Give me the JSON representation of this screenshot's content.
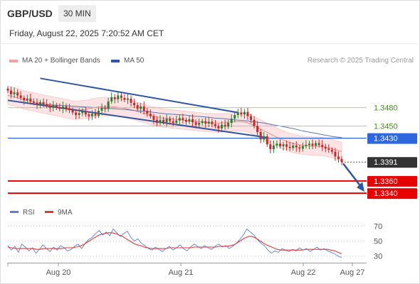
{
  "header": {
    "symbol": "GBP/USD",
    "interval": "30 MIN",
    "timestamp": "Friday, August 22, 2025 7:20:52 AM CET",
    "legend_bb": "MA 20 + Bollinger Bands",
    "legend_ma50": "MA 50",
    "credit": "Research © 2025 Trading Central"
  },
  "colors": {
    "bollinger_fill": "#fde3e3",
    "ma20": "#e88a8a",
    "ma50": "#5a76b3",
    "trendline": "#2f55a4",
    "support_line": "#e60000",
    "resistance_line": "#2d66dd",
    "target_line": "#a7d47a",
    "up_candle": "#2e7d32",
    "down_candle": "#c62828",
    "rsi_line": "#5b7fd6",
    "rsi_ma": "#e53935"
  },
  "chart_data": [
    {
      "type": "candlestick",
      "title": "GBP/USD 30 MIN",
      "x_tick_labels": [
        "Aug 20",
        "Aug 21",
        "Aug 22",
        "Aug 27"
      ],
      "price_range": [
        1.3325,
        1.354
      ],
      "levels": [
        {
          "label": "1.3480",
          "value": 1.348,
          "kind": "target",
          "color": "#a7d47a"
        },
        {
          "label": "1.3450",
          "value": 1.345,
          "kind": "target",
          "color": "#a7d47a"
        },
        {
          "label": "1.3430",
          "value": 1.343,
          "kind": "pivot",
          "color": "#2d66dd"
        },
        {
          "label": "1.3391",
          "value": 1.3391,
          "kind": "last",
          "color": "#333333"
        },
        {
          "label": "1.3360",
          "value": 1.336,
          "kind": "support",
          "color": "#e60000"
        },
        {
          "label": "1.3340",
          "value": 1.334,
          "kind": "support",
          "color": "#e60000"
        }
      ],
      "candles_close": [
        1.3508,
        1.3502,
        1.3505,
        1.35,
        1.3496,
        1.3492,
        1.3495,
        1.349,
        1.3488,
        1.3485,
        1.3489,
        1.3486,
        1.3483,
        1.348,
        1.3484,
        1.3481,
        1.3478,
        1.3482,
        1.3479,
        1.3476,
        1.3472,
        1.3468,
        1.3471,
        1.3474,
        1.3469,
        1.3466,
        1.347,
        1.3467,
        1.3475,
        1.348,
        1.3478,
        1.349,
        1.3497,
        1.3494,
        1.35,
        1.3496,
        1.3493,
        1.3495,
        1.3488,
        1.3484,
        1.3478,
        1.3482,
        1.3475,
        1.347,
        1.3466,
        1.346,
        1.3455,
        1.346,
        1.3456,
        1.3462,
        1.3458,
        1.3455,
        1.3459,
        1.3463,
        1.346,
        1.3457,
        1.3461,
        1.3456,
        1.3452,
        1.3455,
        1.3458,
        1.3454,
        1.3457,
        1.3453,
        1.345,
        1.3446,
        1.3452,
        1.3449,
        1.3455,
        1.3462,
        1.3468,
        1.3472,
        1.3469,
        1.3473,
        1.3466,
        1.346,
        1.345,
        1.344,
        1.3428,
        1.3433,
        1.342,
        1.3412,
        1.3418,
        1.3421,
        1.3417,
        1.342,
        1.3416,
        1.3414,
        1.3418,
        1.3415,
        1.3413,
        1.3417,
        1.3419,
        1.3421,
        1.3418,
        1.3422,
        1.3419,
        1.3416,
        1.3413,
        1.3411,
        1.3408,
        1.34,
        1.3396,
        1.3391
      ],
      "ma20_close": [
        1.35,
        1.3498,
        1.3495,
        1.3492,
        1.349,
        1.3488,
        1.3486,
        1.3484,
        1.3482,
        1.348,
        1.3478,
        1.3476,
        1.3476,
        1.3477,
        1.3479,
        1.3481,
        1.3482,
        1.3482,
        1.3481,
        1.348,
        1.3478,
        1.3476,
        1.3473,
        1.347,
        1.3467,
        1.3465,
        1.3463,
        1.3462,
        1.3461,
        1.346,
        1.3459,
        1.3458,
        1.3457,
        1.3456,
        1.3455,
        1.3455,
        1.3455,
        1.3456,
        1.3457,
        1.3457,
        1.3456,
        1.3452,
        1.3447,
        1.3442,
        1.3437,
        1.3432,
        1.3428,
        1.3424,
        1.3421,
        1.3419,
        1.3418,
        1.3417,
        1.3417,
        1.3416,
        1.3414,
        1.3411,
        1.3408
      ],
      "ma50_close": [
        1.3492,
        1.349,
        1.3488,
        1.3486,
        1.3485,
        1.3484,
        1.3483,
        1.3482,
        1.3481,
        1.348,
        1.3479,
        1.3478,
        1.3477,
        1.3475,
        1.3474,
        1.3472,
        1.347,
        1.3469,
        1.3468,
        1.3466,
        1.3465,
        1.3463,
        1.3462,
        1.346,
        1.3459,
        1.3457,
        1.3455,
        1.3452,
        1.3449,
        1.3446,
        1.3442,
        1.3439,
        1.3436,
        1.3433,
        1.3431
      ],
      "bollinger_half_width": 0.0015,
      "trendlines": [
        {
          "name": "upper",
          "from_index": 10,
          "from": 1.3528,
          "to_index": 71,
          "to": 1.3472
        },
        {
          "name": "lower",
          "from_index": 0,
          "from": 1.3492,
          "to_index": 80,
          "to": 1.3431
        }
      ]
    },
    {
      "type": "line",
      "title": "RSI",
      "series": [
        {
          "name": "RSI",
          "values": [
            44,
            38,
            43,
            35,
            46,
            42,
            37,
            41,
            34,
            39,
            45,
            40,
            36,
            42,
            38,
            44,
            41,
            37,
            39,
            43,
            46,
            40,
            47,
            52,
            55,
            60,
            64,
            58,
            62,
            57,
            66,
            61,
            56,
            60,
            63,
            55,
            50,
            53,
            47,
            44,
            40,
            38,
            42,
            39,
            36,
            40,
            43,
            38,
            41,
            45,
            40,
            37,
            42,
            46,
            43,
            40,
            44,
            41,
            39,
            43,
            46,
            42,
            44,
            40,
            43,
            47,
            52,
            58,
            66,
            62,
            58,
            52,
            47,
            44,
            38,
            34,
            37,
            35,
            40,
            38,
            36,
            39,
            37,
            41,
            38,
            40,
            36,
            39,
            42,
            38,
            40,
            37,
            35,
            33,
            30,
            28
          ]
        },
        {
          "name": "9MA",
          "values": [
            42,
            41,
            40,
            40,
            40,
            40,
            40,
            40,
            39,
            39,
            40,
            40,
            40,
            40,
            40,
            40,
            41,
            41,
            41,
            42,
            43,
            45,
            48,
            51,
            54,
            57,
            59,
            60,
            61,
            61,
            60,
            58,
            56,
            53,
            50,
            47,
            45,
            44,
            42,
            41,
            40,
            40,
            40,
            40,
            40,
            41,
            41,
            41,
            41,
            41,
            41,
            41,
            42,
            42,
            42,
            42,
            42,
            42,
            42,
            43,
            43,
            43,
            44,
            45,
            48,
            51,
            54,
            56,
            56,
            54,
            51,
            48,
            45,
            43,
            41,
            39,
            38,
            38,
            38,
            38,
            38,
            38,
            38,
            39,
            39,
            39,
            39,
            39,
            39,
            39,
            38,
            37,
            35,
            33
          ]
        }
      ],
      "y_ticks": [
        "70",
        "50",
        "30"
      ],
      "ylim": [
        25,
        75
      ],
      "legend": [
        "RSI",
        "9MA"
      ]
    }
  ]
}
